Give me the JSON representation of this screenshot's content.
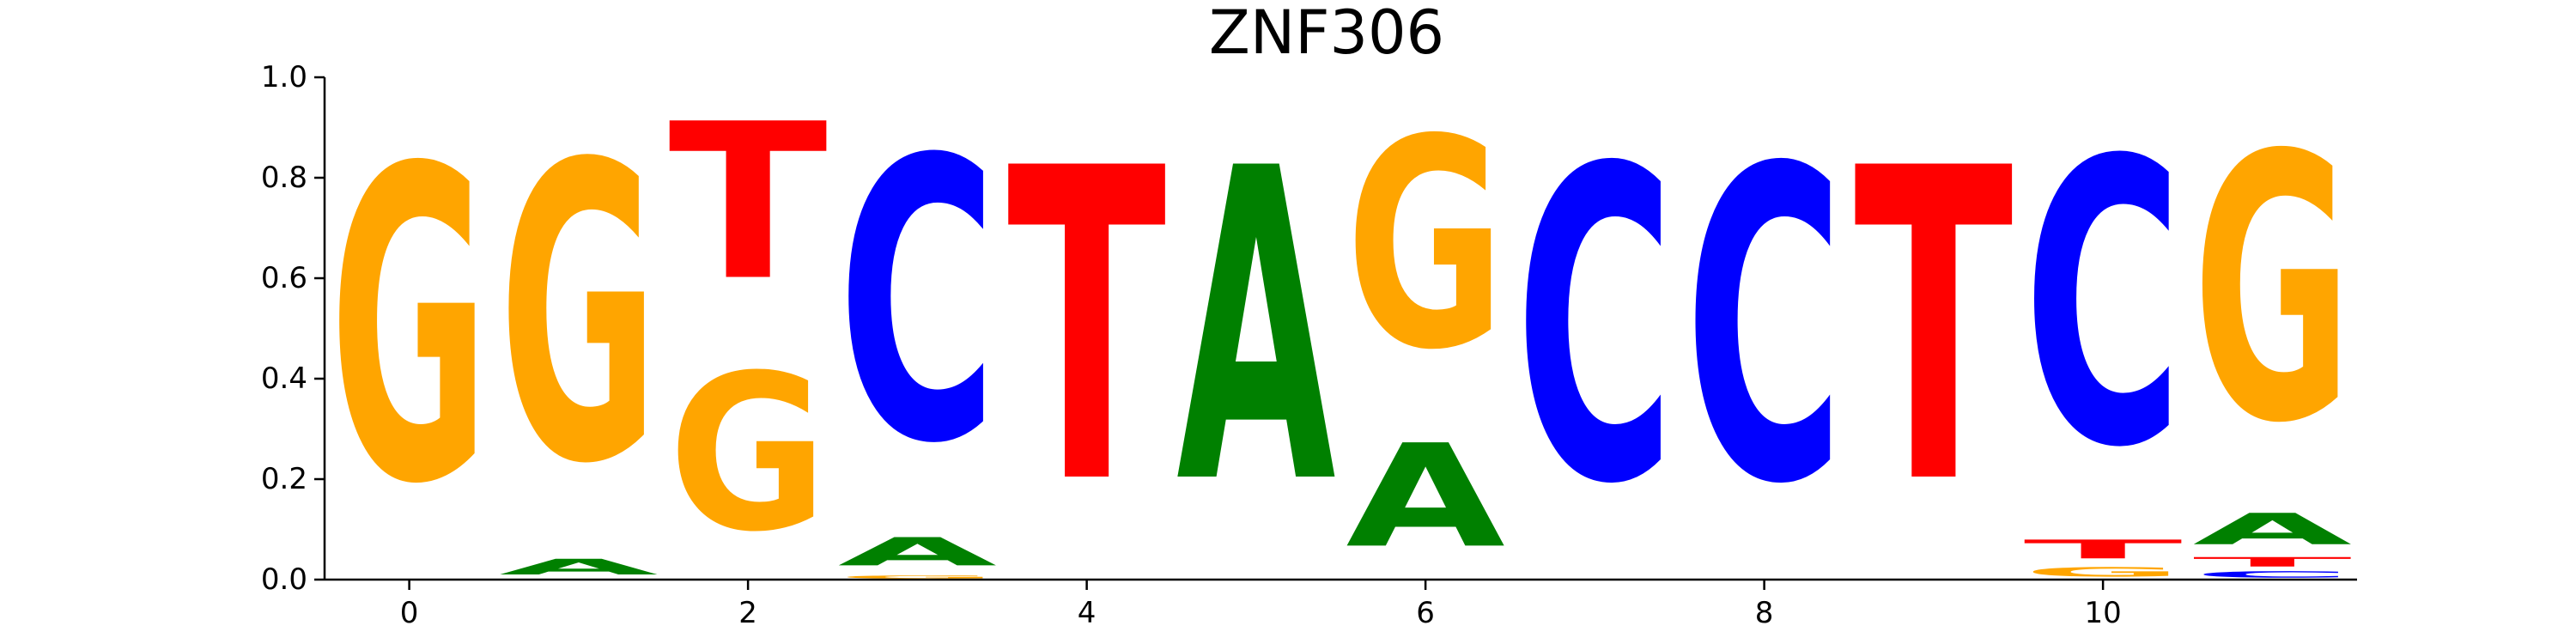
{
  "chart_data": {
    "type": "sequence-logo",
    "title": "ZNF306",
    "xlabel": "",
    "ylabel": "",
    "ylim": [
      0,
      1
    ],
    "xlim": [
      -0.5,
      11.5
    ],
    "x_ticks": [
      0,
      2,
      4,
      6,
      8,
      10
    ],
    "x_tick_labels": [
      "0",
      "2",
      "4",
      "6",
      "8",
      "10"
    ],
    "y_ticks": [
      0,
      0.2,
      0.4,
      0.6,
      0.8,
      1.0
    ],
    "y_tick_labels": [
      "0.0",
      "0.2",
      "0.4",
      "0.6",
      "0.8",
      "1.0"
    ],
    "colors": {
      "A": "#008000",
      "C": "#0000ff",
      "G": "#ffa500",
      "T": "#ff0000"
    },
    "positions": [
      {
        "x": 0,
        "stack": [
          {
            "base": "G",
            "value": 1.0
          }
        ]
      },
      {
        "x": 1,
        "stack": [
          {
            "base": "A",
            "value": 0.05
          },
          {
            "base": "G",
            "value": 0.95
          }
        ]
      },
      {
        "x": 2,
        "stack": [
          {
            "base": "G",
            "value": 0.5
          },
          {
            "base": "T",
            "value": 0.5
          }
        ]
      },
      {
        "x": 3,
        "stack": [
          {
            "base": "G",
            "value": 0.01
          },
          {
            "base": "A",
            "value": 0.09
          },
          {
            "base": "C",
            "value": 0.9
          }
        ]
      },
      {
        "x": 4,
        "stack": [
          {
            "base": "T",
            "value": 1.0
          }
        ]
      },
      {
        "x": 5,
        "stack": [
          {
            "base": "A",
            "value": 1.0
          }
        ]
      },
      {
        "x": 6,
        "stack": [
          {
            "base": "A",
            "value": 0.33
          },
          {
            "base": "G",
            "value": 0.67
          }
        ]
      },
      {
        "x": 7,
        "stack": [
          {
            "base": "C",
            "value": 1.0
          }
        ]
      },
      {
        "x": 8,
        "stack": [
          {
            "base": "C",
            "value": 1.0
          }
        ]
      },
      {
        "x": 9,
        "stack": [
          {
            "base": "T",
            "value": 1.0
          }
        ]
      },
      {
        "x": 10,
        "stack": [
          {
            "base": "G",
            "value": 0.03
          },
          {
            "base": "T",
            "value": 0.06
          },
          {
            "base": "C",
            "value": 0.91
          }
        ]
      },
      {
        "x": 11,
        "stack": [
          {
            "base": "C",
            "value": 0.02
          },
          {
            "base": "T",
            "value": 0.03
          },
          {
            "base": "A",
            "value": 0.1
          },
          {
            "base": "G",
            "value": 0.85
          }
        ]
      }
    ]
  }
}
